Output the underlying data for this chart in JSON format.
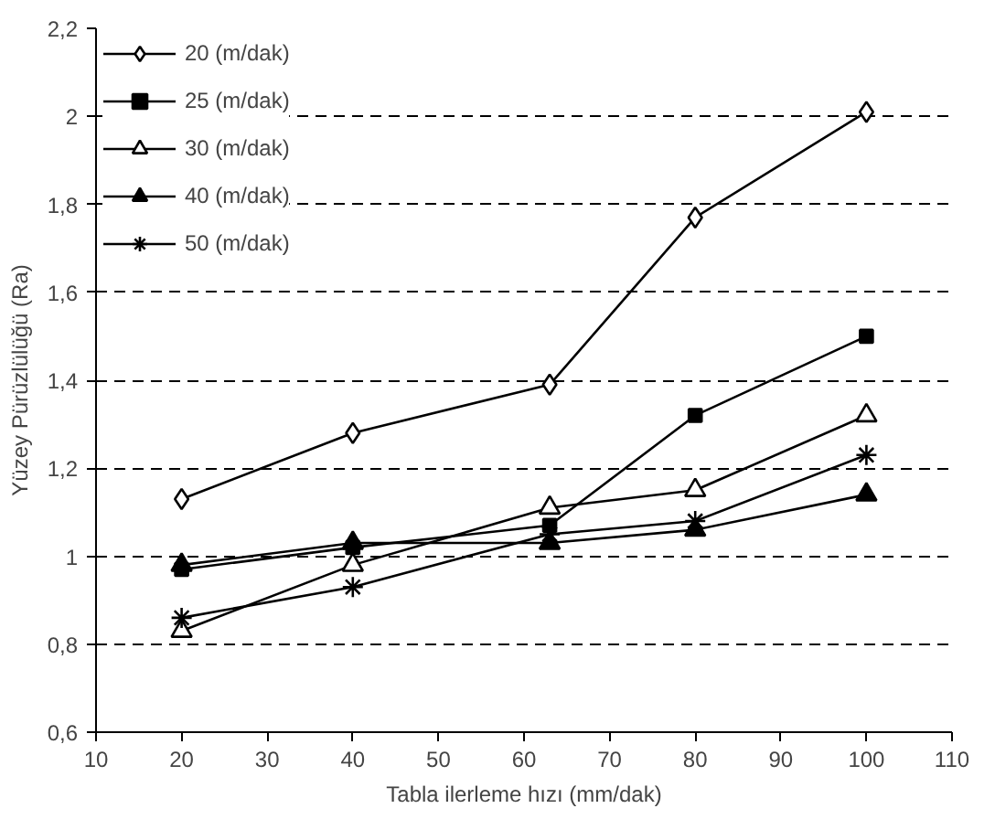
{
  "chart_data": {
    "type": "line",
    "xlabel": "Tabla ilerleme hızı (mm/dak)",
    "ylabel": "Yüzey Pürüzlülüğü (Ra)",
    "x": [
      20,
      40,
      63,
      80,
      100
    ],
    "series": [
      {
        "name": "20 (m/dak)",
        "color": "#000000",
        "marker": "diamond",
        "values": [
          1.13,
          1.28,
          1.39,
          1.77,
          2.01
        ]
      },
      {
        "name": "25 (m/dak)",
        "color": "#000000",
        "marker": "square",
        "values": [
          0.97,
          1.02,
          1.07,
          1.32,
          1.5
        ]
      },
      {
        "name": "30 (m/dak)",
        "color": "#000000",
        "marker": "triangle",
        "values": [
          0.83,
          0.98,
          1.11,
          1.15,
          1.32
        ]
      },
      {
        "name": "40 (m/dak)",
        "color": "#000000",
        "marker": "triangle",
        "values": [
          0.98,
          1.03,
          1.03,
          1.06,
          1.14
        ]
      },
      {
        "name": "50 (m/dak)",
        "color": "#000000",
        "marker": "cross",
        "values": [
          0.86,
          0.93,
          1.05,
          1.08,
          1.23
        ]
      }
    ],
    "xlim": [
      10,
      110
    ],
    "xticks": [
      10,
      20,
      30,
      40,
      50,
      60,
      70,
      80,
      90,
      100,
      110
    ],
    "ylim": [
      0.6,
      2.2
    ],
    "yticks": [
      {
        "value": 0.6,
        "label": "0,6"
      },
      {
        "value": 0.8,
        "label": "0,8"
      },
      {
        "value": 1,
        "label": "1"
      },
      {
        "value": 1.2,
        "label": "1,2"
      },
      {
        "value": 1.4,
        "label": "1,4"
      },
      {
        "value": 1.6,
        "label": "1,6"
      },
      {
        "value": 1.8,
        "label": "1,8"
      },
      {
        "value": 2,
        "label": "2"
      },
      {
        "value": 2.2,
        "label": "2,2"
      }
    ],
    "grid": "y",
    "legend": "top left",
    "line_style": "solid"
  }
}
